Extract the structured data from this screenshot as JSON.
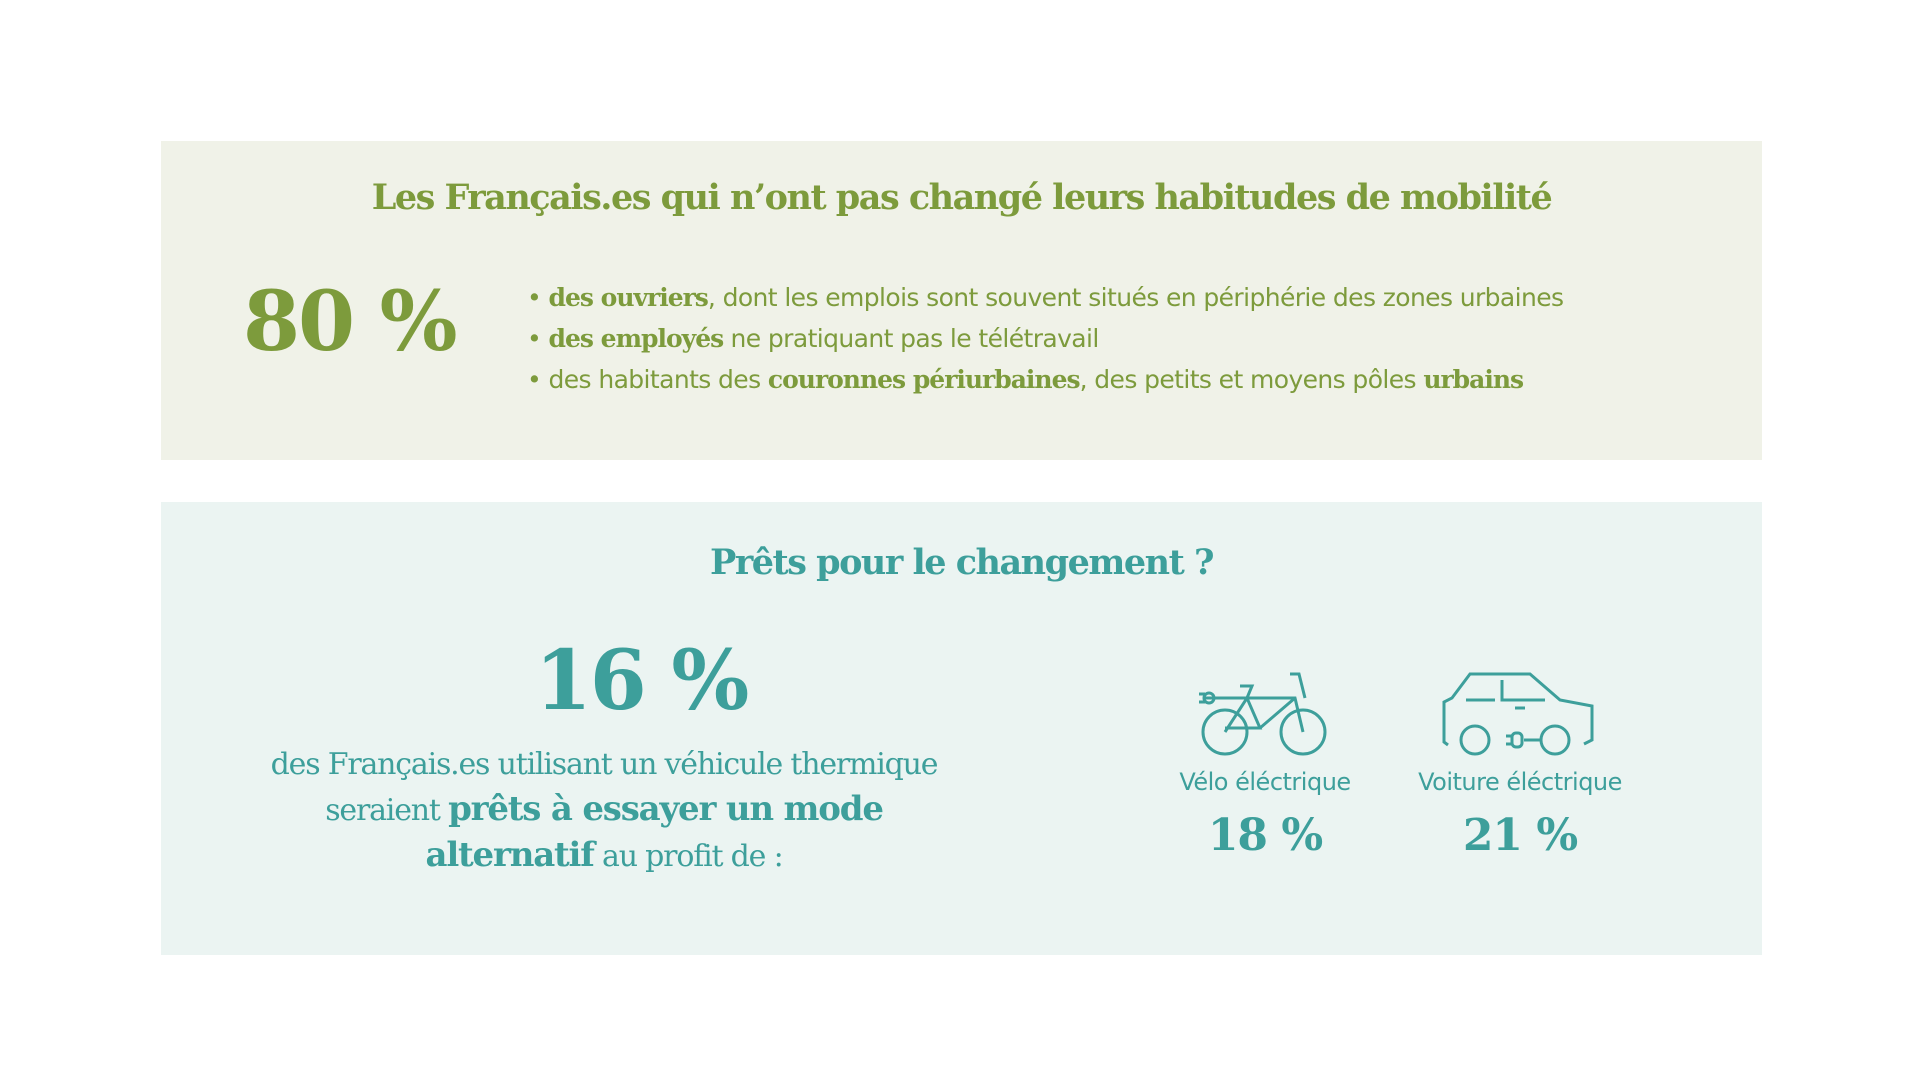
{
  "section1": {
    "title": "Les Français.es qui n’ont pas changé leurs habitudes de mobilité",
    "stat": "80 %",
    "bullets": [
      {
        "bold": "des ouvriers",
        "rest": ", dont les emplois sont souvent situés en périphérie des zones urbaines"
      },
      {
        "bold": "des employés",
        "rest": " ne pratiquant pas le télétravail"
      },
      {
        "pre": "des habitants des ",
        "bold": "couronnes périurbaines",
        "mid": ", des petits et moyens pôles ",
        "bold2": "urbains"
      }
    ]
  },
  "section2": {
    "title": "Prêts pour le changement ?",
    "stat": "16 %",
    "desc_line1": "des Français.es utilisant un véhicule thermique",
    "desc_pre": "seraient ",
    "desc_bold1": "prêts à essayer un mode",
    "desc_bold2": "alternatif",
    "desc_post": " au profit de :",
    "modes": [
      {
        "icon": "electric-bike-icon",
        "label": "Vélo éléctrique",
        "value": "18 %"
      },
      {
        "icon": "electric-car-icon",
        "label": "Voiture éléctrique",
        "value": "21 %"
      }
    ]
  },
  "colors": {
    "green": "#7d9b3c",
    "teal": "#3d9f9b"
  }
}
